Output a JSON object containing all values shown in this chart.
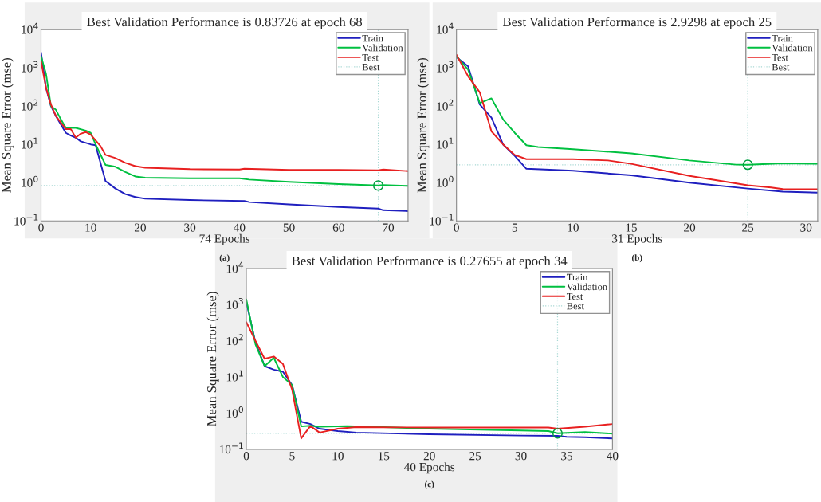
{
  "chart_data": [
    {
      "type": "line",
      "title": "Best Validation Performance is 0.83726 at epoch 68",
      "xlabel": "74 Epochs",
      "ylabel": "Mean Square Error (mse)",
      "log": "y",
      "xlim": [
        0,
        74
      ],
      "xticks": [
        0,
        10,
        20,
        30,
        40,
        50,
        60,
        70
      ],
      "ylim": [
        0.1,
        10000
      ],
      "yticks": [
        {
          "value": 0.1,
          "label": "10$^{−1}$"
        },
        {
          "value": 1,
          "label": "10$^{0}$"
        },
        {
          "value": 10,
          "label": "10$^{1}$"
        },
        {
          "value": 100,
          "label": "10$^{2}$"
        },
        {
          "value": 1000,
          "label": "10$^{3}$"
        },
        {
          "value": 10000,
          "label": "10$^{4}$"
        }
      ],
      "grid": false,
      "legend": "top right",
      "annotations": [
        "(a)"
      ],
      "series": [
        {
          "name": "Train",
          "color": "#1f1fbf",
          "x": [
            0,
            1,
            2,
            3,
            5,
            6,
            7,
            8,
            10,
            11,
            13,
            15,
            17,
            19,
            21,
            30,
            41,
            42,
            50,
            60,
            68,
            69,
            74
          ],
          "values": [
            2500,
            300,
            100,
            55,
            20,
            17,
            15,
            12,
            10,
            9.5,
            1.1,
            0.7,
            0.5,
            0.42,
            0.38,
            0.35,
            0.33,
            0.31,
            0.27,
            0.23,
            0.21,
            0.19,
            0.18
          ]
        },
        {
          "name": "Validation",
          "color": "#00c040",
          "x": [
            0,
            1,
            2,
            3,
            4,
            5,
            7,
            9,
            10,
            11,
            13,
            15,
            17,
            19,
            21,
            30,
            40,
            42,
            50,
            60,
            68,
            69,
            74
          ],
          "values": [
            2000,
            700,
            100,
            80,
            45,
            27,
            27,
            23,
            20,
            10,
            2.9,
            2.6,
            1.9,
            1.45,
            1.35,
            1.3,
            1.3,
            1.2,
            1.05,
            0.92,
            0.84,
            0.87,
            0.82
          ]
        },
        {
          "name": "Test",
          "color": "#e82020",
          "x": [
            0,
            1,
            2,
            3,
            5,
            6,
            7,
            8,
            9,
            10,
            12,
            13,
            15,
            17,
            19,
            21,
            30,
            40,
            41,
            50,
            60,
            68,
            69,
            74
          ],
          "values": [
            1500,
            300,
            110,
            55,
            25,
            25,
            15,
            19,
            21,
            18,
            9,
            5.3,
            4.4,
            3.3,
            2.7,
            2.45,
            2.25,
            2.2,
            2.3,
            2.15,
            2.15,
            2.1,
            2.2,
            2.0
          ]
        },
        {
          "type": "scatter",
          "marker": "circle",
          "color": "#00a040",
          "x": [
            68
          ],
          "values": [
            0.83726
          ]
        }
      ],
      "ref_lines": [
        {
          "axis": "x",
          "value": 68,
          "label": "Best",
          "color": "#a8d8d4",
          "line_style": "dotted"
        },
        {
          "axis": "y",
          "value": 0.83726,
          "color": "#a8d8d4",
          "line_style": "dotted"
        }
      ]
    },
    {
      "type": "line",
      "title": "Best Validation Performance is 2.9298 at epoch 25",
      "xlabel": "31 Epochs",
      "ylabel": "Mean Square Error (mse)",
      "log": "y",
      "xlim": [
        0,
        31
      ],
      "xticks": [
        0,
        5,
        10,
        15,
        20,
        25,
        30
      ],
      "ylim": [
        0.1,
        10000
      ],
      "yticks": [
        {
          "value": 0.1,
          "label": "10$^{−1}$"
        },
        {
          "value": 1,
          "label": "10$^{0}$"
        },
        {
          "value": 10,
          "label": "10$^{1}$"
        },
        {
          "value": 100,
          "label": "10$^{2}$"
        },
        {
          "value": 1000,
          "label": "10$^{3}$"
        },
        {
          "value": 10000,
          "label": "10$^{4}$"
        }
      ],
      "grid": false,
      "legend": "top right",
      "annotations": [
        "(b)"
      ],
      "series": [
        {
          "name": "Train",
          "color": "#1f1fbf",
          "x": [
            0,
            1,
            2,
            3,
            4,
            5,
            6,
            10,
            15,
            20,
            25,
            28,
            31
          ],
          "values": [
            1900,
            1100,
            110,
            50,
            10,
            5,
            2.3,
            2.05,
            1.55,
            1.0,
            0.7,
            0.58,
            0.55
          ]
        },
        {
          "name": "Validation",
          "color": "#00c040",
          "x": [
            0,
            1,
            2,
            3,
            4,
            5,
            6,
            7,
            10,
            15,
            20,
            24,
            25,
            28,
            31
          ],
          "values": [
            2000,
            900,
            120,
            160,
            45,
            20,
            9.5,
            8.5,
            7.5,
            5.8,
            3.8,
            2.95,
            2.9298,
            3.2,
            3.1
          ]
        },
        {
          "name": "Test",
          "color": "#e82020",
          "x": [
            0,
            1,
            2,
            3,
            4,
            5,
            6,
            10,
            13,
            15,
            20,
            25,
            27,
            28,
            31
          ],
          "values": [
            2200,
            600,
            230,
            22,
            10,
            5.3,
            4.1,
            4.1,
            3.8,
            3.1,
            1.5,
            0.85,
            0.75,
            0.68,
            0.67
          ]
        },
        {
          "type": "scatter",
          "marker": "circle",
          "color": "#00a040",
          "x": [
            25
          ],
          "values": [
            2.9298
          ]
        }
      ],
      "ref_lines": [
        {
          "axis": "x",
          "value": 25,
          "label": "Best",
          "color": "#a8d8d4",
          "line_style": "dotted"
        },
        {
          "axis": "y",
          "value": 2.9298,
          "color": "#a8d8d4",
          "line_style": "dotted"
        }
      ]
    },
    {
      "type": "line",
      "title": "Best Validation Performance is 0.27655 at epoch 34",
      "xlabel": "40 Epochs",
      "ylabel": "Mean Square Error (mse)",
      "log": "y",
      "xlim": [
        0,
        40
      ],
      "xticks": [
        0,
        5,
        10,
        15,
        20,
        25,
        30,
        35,
        40
      ],
      "ylim": [
        0.1,
        10000
      ],
      "yticks": [
        {
          "value": 0.1,
          "label": "10$^{−1}$"
        },
        {
          "value": 1,
          "label": "10$^{0}$"
        },
        {
          "value": 10,
          "label": "10$^{1}$"
        },
        {
          "value": 100,
          "label": "10$^{2}$"
        },
        {
          "value": 1000,
          "label": "10$^{3}$"
        },
        {
          "value": 10000,
          "label": "10$^{4}$"
        }
      ],
      "grid": false,
      "legend": "top right",
      "annotations": [
        "(c)"
      ],
      "series": [
        {
          "name": "Train",
          "color": "#1f1fbf",
          "x": [
            0,
            1,
            2,
            3,
            4,
            5,
            6,
            7,
            8,
            10,
            12,
            20,
            30,
            34,
            35,
            37,
            40
          ],
          "values": [
            1200,
            90,
            20,
            16,
            14,
            6,
            0.58,
            0.5,
            0.37,
            0.32,
            0.29,
            0.26,
            0.24,
            0.235,
            0.22,
            0.215,
            0.2
          ]
        },
        {
          "name": "Validation",
          "color": "#00c040",
          "x": [
            0,
            1,
            2,
            3,
            4,
            5,
            6,
            7,
            8,
            11,
            15,
            20,
            30,
            33,
            34,
            37,
            40
          ],
          "values": [
            1400,
            80,
            20,
            34,
            10,
            6,
            0.43,
            0.45,
            0.42,
            0.44,
            0.41,
            0.37,
            0.33,
            0.32,
            0.27655,
            0.3,
            0.27
          ]
        },
        {
          "name": "Test",
          "color": "#e82020",
          "x": [
            0,
            1,
            2,
            3,
            4,
            5,
            6,
            7,
            8,
            10,
            12,
            20,
            33,
            34,
            37,
            40
          ],
          "values": [
            330,
            100,
            32,
            37,
            23,
            4.5,
            0.2,
            0.44,
            0.29,
            0.37,
            0.41,
            0.4,
            0.4,
            0.37,
            0.42,
            0.5
          ]
        },
        {
          "type": "scatter",
          "marker": "circle",
          "color": "#00a040",
          "x": [
            34
          ],
          "values": [
            0.27655
          ]
        }
      ],
      "ref_lines": [
        {
          "axis": "x",
          "value": 34,
          "label": "Best",
          "color": "#a8d8d4",
          "line_style": "dotted"
        },
        {
          "axis": "y",
          "value": 0.27655,
          "color": "#a8d8d4",
          "line_style": "dotted"
        }
      ]
    }
  ]
}
